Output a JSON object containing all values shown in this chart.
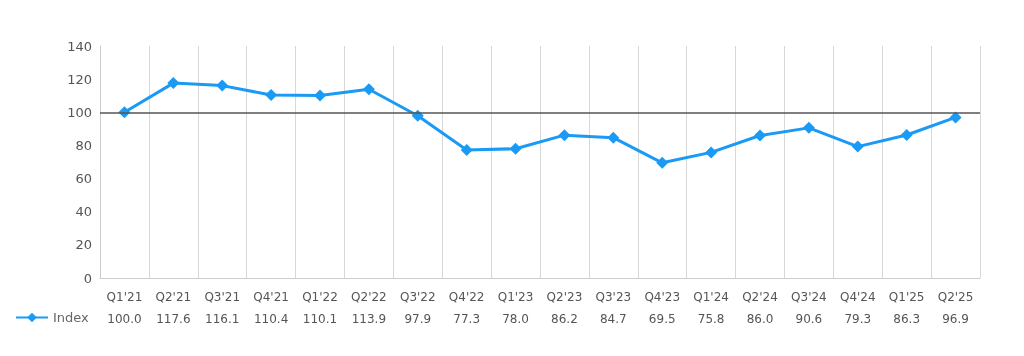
{
  "chart_data": {
    "type": "line",
    "categories": [
      "Q1'21",
      "Q2'21",
      "Q3'21",
      "Q4'21",
      "Q1'22",
      "Q2'22",
      "Q3'22",
      "Q4'22",
      "Q1'23",
      "Q2'23",
      "Q3'23",
      "Q4'23",
      "Q1'24",
      "Q2'24",
      "Q3'24",
      "Q4'24",
      "Q1'25",
      "Q2'25"
    ],
    "series": [
      {
        "name": "Index",
        "color": "#1a9af5",
        "values": [
          100.0,
          117.6,
          116.1,
          110.4,
          110.1,
          113.9,
          97.9,
          77.3,
          78.0,
          86.2,
          84.7,
          69.5,
          75.8,
          86.0,
          90.6,
          79.3,
          86.3,
          96.9
        ],
        "value_labels": [
          "100.0",
          "117.6",
          "116.1",
          "110.4",
          "110.1",
          "113.9",
          "97.9",
          "77.3",
          "78.0",
          "86.2",
          "84.7",
          "69.5",
          "75.8",
          "86.0",
          "90.6",
          "79.3",
          "86.3",
          "96.9"
        ]
      }
    ],
    "ylim": [
      0,
      140
    ],
    "yticks": [
      0,
      20,
      40,
      60,
      80,
      100,
      120,
      140
    ],
    "ref_lines": [
      {
        "axis": "y",
        "value": 100,
        "color": "#555555"
      }
    ],
    "grid": "x",
    "legend": "bottom left",
    "marker": "diamond",
    "line_style": "solid"
  }
}
